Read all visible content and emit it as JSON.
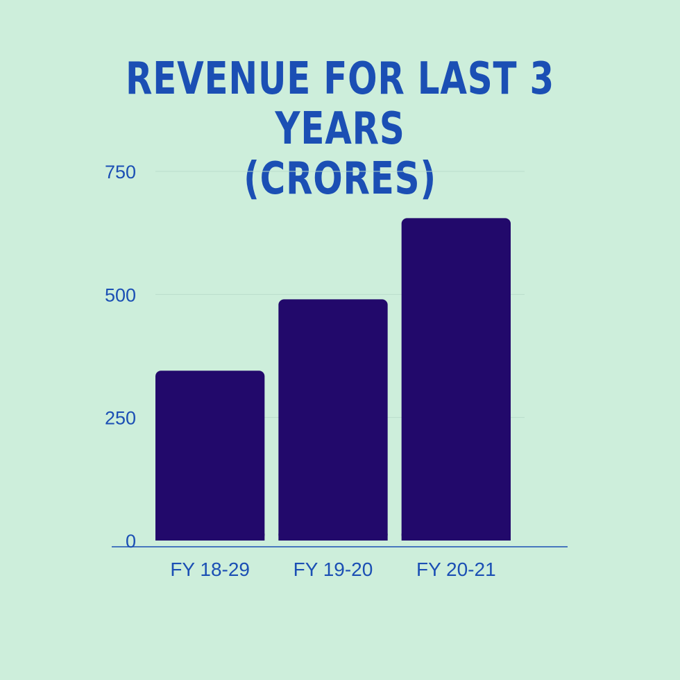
{
  "chart_data": {
    "type": "bar",
    "title_lines": [
      "REVENUE FOR LAST 3 YEARS",
      "(CRORES)"
    ],
    "categories": [
      "FY 18-29",
      "FY 19-20",
      "FY 20-21"
    ],
    "values": [
      345,
      490,
      655
    ],
    "ylim": [
      0,
      750
    ],
    "yticks": [
      0,
      250,
      500,
      750
    ],
    "grid": true,
    "colors": {
      "background": "#cdeedb",
      "bar": "#22096b",
      "text": "#1b4fb4",
      "axis": "#1b4fb4",
      "grid": "#b9dccb"
    }
  }
}
